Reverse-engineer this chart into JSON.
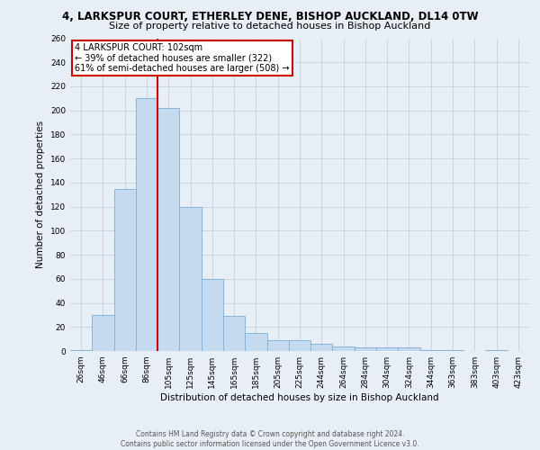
{
  "title1": "4, LARKSPUR COURT, ETHERLEY DENE, BISHOP AUCKLAND, DL14 0TW",
  "title2": "Size of property relative to detached houses in Bishop Auckland",
  "xlabel": "Distribution of detached houses by size in Bishop Auckland",
  "ylabel": "Number of detached properties",
  "categories": [
    "26sqm",
    "46sqm",
    "66sqm",
    "86sqm",
    "105sqm",
    "125sqm",
    "145sqm",
    "165sqm",
    "185sqm",
    "205sqm",
    "225sqm",
    "244sqm",
    "264sqm",
    "284sqm",
    "304sqm",
    "324sqm",
    "344sqm",
    "363sqm",
    "383sqm",
    "403sqm",
    "423sqm"
  ],
  "values": [
    1,
    30,
    135,
    210,
    202,
    120,
    60,
    29,
    15,
    9,
    9,
    6,
    4,
    3,
    3,
    3,
    1,
    1,
    0,
    1,
    0
  ],
  "bar_color": "#c5d9ef",
  "bar_edge_color": "#7aadd4",
  "red_line_x": 3.5,
  "annotation_title": "4 LARKSPUR COURT: 102sqm",
  "annotation_line1": "← 39% of detached houses are smaller (322)",
  "annotation_line2": "61% of semi-detached houses are larger (508) →",
  "annotation_box_color": "#ffffff",
  "annotation_box_edge": "#cc0000",
  "ylim": [
    0,
    260
  ],
  "yticks": [
    0,
    20,
    40,
    60,
    80,
    100,
    120,
    140,
    160,
    180,
    200,
    220,
    240,
    260
  ],
  "background_color": "#e8eef5",
  "grid_color": "#c8d4e0",
  "footer1": "Contains HM Land Registry data © Crown copyright and database right 2024.",
  "footer2": "Contains public sector information licensed under the Open Government Licence v3.0.",
  "title1_fontsize": 8.5,
  "title2_fontsize": 8.0,
  "axis_label_fontsize": 7.5,
  "tick_fontsize": 6.5,
  "footer_fontsize": 5.5
}
